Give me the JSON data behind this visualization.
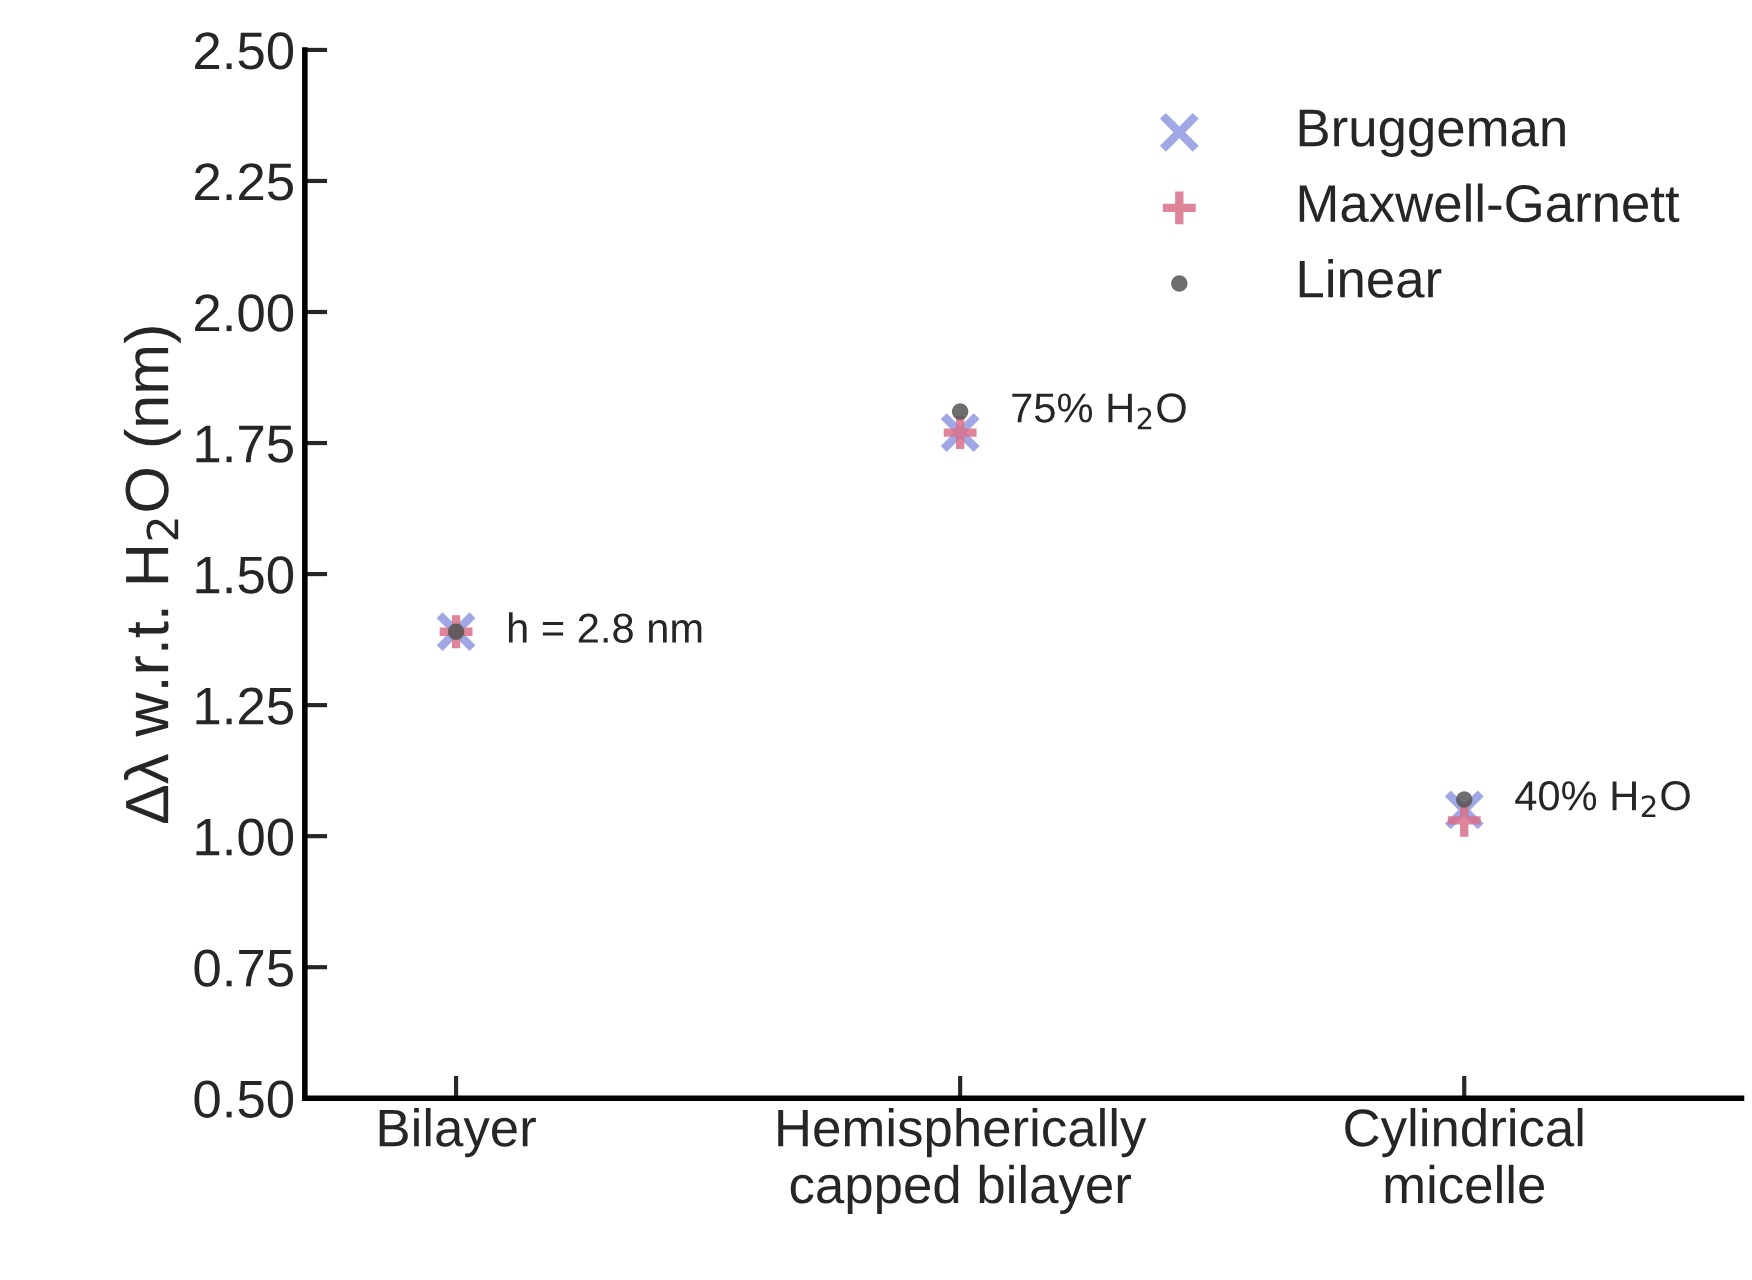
{
  "chart_data": {
    "type": "scatter",
    "ylabel": "Δλ w.r.t. H$_{2}$O (nm)",
    "categories": [
      "Bilayer",
      "Hemispherically\ncapped bilayer",
      "Cylindrical\nmicelle"
    ],
    "series": [
      {
        "name": "Bruggeman",
        "color": "#8f98e0",
        "marker": "cross",
        "values": [
          1.39,
          1.77,
          1.05
        ]
      },
      {
        "name": "Maxwell-Garnett",
        "color": "#d9708a",
        "marker": "plus",
        "values": [
          1.39,
          1.77,
          1.03
        ]
      },
      {
        "name": "Linear",
        "color": "#555555",
        "marker": "circle",
        "values": [
          1.39,
          1.81,
          1.07
        ]
      }
    ],
    "ylim": [
      0.5,
      2.5
    ],
    "yticks": [
      {
        "value": 0.5,
        "label": "0.50"
      },
      {
        "value": 0.75,
        "label": "0.75"
      },
      {
        "value": 1.0,
        "label": "1.00"
      },
      {
        "value": 1.25,
        "label": "1.25"
      },
      {
        "value": 1.5,
        "label": "1.50"
      },
      {
        "value": 1.75,
        "label": "1.75"
      },
      {
        "value": 2.0,
        "label": "2.00"
      },
      {
        "value": 2.25,
        "label": "2.25"
      },
      {
        "value": 2.5,
        "label": "2.50"
      }
    ],
    "annotations": [
      {
        "text": "h = 2.8 nm",
        "x": "Bilayer",
        "y": 1.39
      },
      {
        "text": "75% H$_{2}$O",
        "x": "Hemispherically\ncapped bilayer",
        "y": 1.81
      },
      {
        "text": "40% H$_{2}$O",
        "x": "Cylindrical\nmicelle",
        "y": 1.07
      }
    ],
    "legend": "top right",
    "grid": false
  }
}
